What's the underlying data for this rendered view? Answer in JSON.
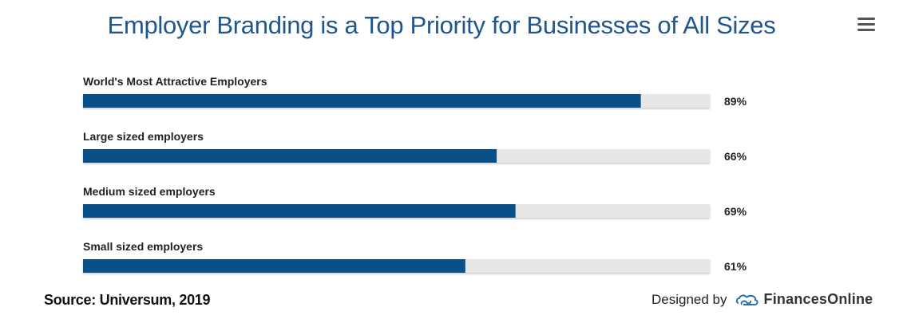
{
  "title": "Employer Branding is a Top Priority for Businesses of All Sizes",
  "menu": {
    "icon": "hamburger-menu-icon"
  },
  "chart_data": {
    "type": "bar",
    "orientation": "horizontal",
    "categories": [
      "World's Most Attractive Employers",
      "Large sized employers",
      "Medium sized employers",
      "Small sized employers"
    ],
    "values": [
      89,
      66,
      69,
      61
    ],
    "value_labels": [
      "89%",
      "66%",
      "69%",
      "61%"
    ],
    "xlim": [
      0,
      100
    ],
    "bar_color": "#0a5088",
    "track_color": "#e7e7e7"
  },
  "footer": {
    "source": "Source: Universum, 2019",
    "credit_prefix": "Designed by",
    "brand": "FinancesOnline",
    "brand_icon": "financesonline-logo-icon"
  }
}
